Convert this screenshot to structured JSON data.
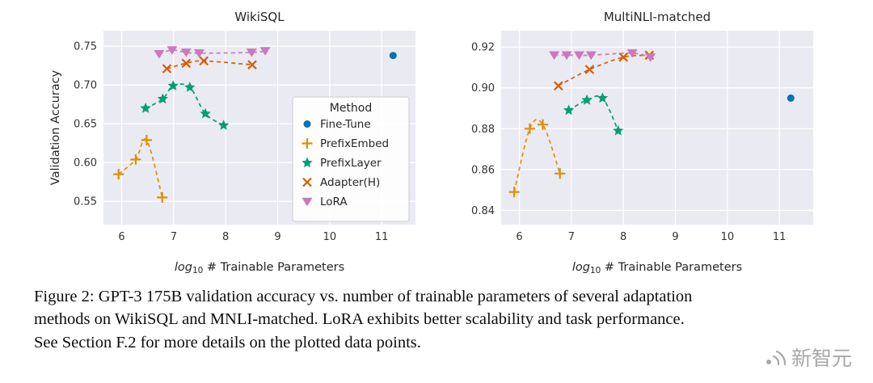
{
  "figure": {
    "caption_lines": [
      "Figure 2: GPT-3 175B validation accuracy vs. number of trainable parameters of several adaptation",
      "methods on WikiSQL and MNLI-matched. LoRA exhibits better scalability and task performance.",
      "See Section F.2 for more details on the plotted data points."
    ]
  },
  "watermark": {
    "text": "新智元"
  },
  "chart_data": [
    {
      "type": "scatter",
      "title": "WikiSQL",
      "xlabel": "log10 # Trainable Parameters",
      "ylabel": "Validation Accuracy",
      "xlim": [
        5.65,
        11.65
      ],
      "ylim": [
        0.52,
        0.77
      ],
      "xticks": [
        6,
        7,
        8,
        9,
        10,
        11
      ],
      "yticks": [
        0.55,
        0.6,
        0.65,
        0.7,
        0.75
      ],
      "grid": true,
      "plot_bg": "#eaeaf2",
      "grid_color": "#ffffff",
      "legend": {
        "title": "Method",
        "position": "center-right"
      },
      "series": [
        {
          "name": "Fine-Tune",
          "marker": "circle",
          "color": "#0173b2",
          "line": false,
          "points": [
            [
              11.22,
              0.738
            ]
          ]
        },
        {
          "name": "PrefixEmbed",
          "marker": "plus",
          "color": "#de8f05",
          "line": true,
          "points": [
            [
              5.94,
              0.585
            ],
            [
              6.27,
              0.604
            ],
            [
              6.48,
              0.629
            ],
            [
              6.78,
              0.555
            ]
          ]
        },
        {
          "name": "PrefixLayer",
          "marker": "star",
          "color": "#029e73",
          "line": true,
          "points": [
            [
              6.46,
              0.67
            ],
            [
              6.79,
              0.682
            ],
            [
              6.99,
              0.699
            ],
            [
              7.31,
              0.697
            ],
            [
              7.61,
              0.663
            ],
            [
              7.96,
              0.648
            ]
          ]
        },
        {
          "name": "Adapter(H)",
          "marker": "x",
          "color": "#d55e00",
          "line": true,
          "points": [
            [
              6.87,
              0.721
            ],
            [
              7.24,
              0.728
            ],
            [
              7.58,
              0.731
            ],
            [
              8.51,
              0.726
            ]
          ]
        },
        {
          "name": "LoRA",
          "marker": "triangle-down",
          "color": "#cc78bc",
          "line": true,
          "points": [
            [
              6.72,
              0.74
            ],
            [
              6.97,
              0.745
            ],
            [
              7.24,
              0.742
            ],
            [
              7.49,
              0.741
            ],
            [
              8.5,
              0.742
            ],
            [
              8.76,
              0.744
            ]
          ]
        }
      ]
    },
    {
      "type": "scatter",
      "title": "MultiNLI-matched",
      "xlabel": "log10 # Trainable Parameters",
      "ylabel": "",
      "xlim": [
        5.65,
        11.65
      ],
      "ylim": [
        0.833,
        0.928
      ],
      "xticks": [
        6,
        7,
        8,
        9,
        10,
        11
      ],
      "yticks": [
        0.84,
        0.86,
        0.88,
        0.9,
        0.92
      ],
      "grid": true,
      "plot_bg": "#eaeaf2",
      "grid_color": "#ffffff",
      "series": [
        {
          "name": "Fine-Tune",
          "marker": "circle",
          "color": "#0173b2",
          "line": false,
          "points": [
            [
              11.22,
              0.895
            ]
          ]
        },
        {
          "name": "PrefixEmbed",
          "marker": "plus",
          "color": "#de8f05",
          "line": true,
          "points": [
            [
              5.9,
              0.849
            ],
            [
              6.2,
              0.88
            ],
            [
              6.45,
              0.882
            ],
            [
              6.78,
              0.858
            ]
          ]
        },
        {
          "name": "PrefixLayer",
          "marker": "star",
          "color": "#029e73",
          "line": true,
          "points": [
            [
              6.95,
              0.889
            ],
            [
              7.3,
              0.894
            ],
            [
              7.6,
              0.895
            ],
            [
              7.9,
              0.879
            ]
          ]
        },
        {
          "name": "Adapter(H)",
          "marker": "x",
          "color": "#d55e00",
          "line": true,
          "points": [
            [
              6.75,
              0.901
            ],
            [
              7.35,
              0.909
            ],
            [
              8.0,
              0.915
            ],
            [
              8.5,
              0.916
            ]
          ]
        },
        {
          "name": "LoRA",
          "marker": "triangle-down",
          "color": "#cc78bc",
          "line": true,
          "points": [
            [
              6.67,
              0.916
            ],
            [
              6.91,
              0.916
            ],
            [
              7.15,
              0.916
            ],
            [
              7.38,
              0.916
            ],
            [
              8.17,
              0.917
            ],
            [
              8.52,
              0.915
            ]
          ]
        }
      ]
    }
  ]
}
